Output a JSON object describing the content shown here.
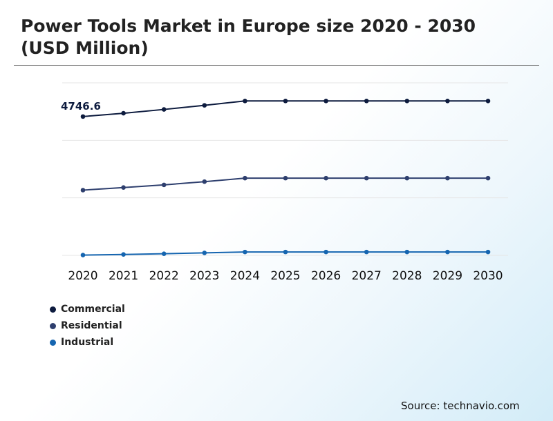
{
  "title": "Power Tools Market in Europe size 2020 - 2030 (USD Million)",
  "source": "Source: technavio.com",
  "chart_data": {
    "type": "line",
    "x": [
      "2020",
      "2021",
      "2022",
      "2023",
      "2024",
      "2025",
      "2026",
      "2027",
      "2028",
      "2029",
      "2030"
    ],
    "annotations": [
      {
        "series": "Commercial",
        "x": "2020",
        "text": "4746.6"
      }
    ],
    "legend_position": "bottom-left",
    "grid": true,
    "ylim": [
      0,
      5900
    ],
    "series": [
      {
        "name": "Commercial",
        "color": "#0d1b3e",
        "values": [
          4746.6,
          4860,
          4990,
          5130,
          5280,
          5280,
          5280,
          5280,
          5280,
          5280,
          5280
        ]
      },
      {
        "name": "Residential",
        "color": "#2e3f6e",
        "values": [
          2230,
          2320,
          2410,
          2520,
          2640,
          2640,
          2640,
          2640,
          2640,
          2640,
          2640
        ]
      },
      {
        "name": "Industrial",
        "color": "#1565b0",
        "values": [
          10,
          30,
          55,
          85,
          115,
          115,
          115,
          115,
          115,
          115,
          115
        ]
      }
    ]
  }
}
